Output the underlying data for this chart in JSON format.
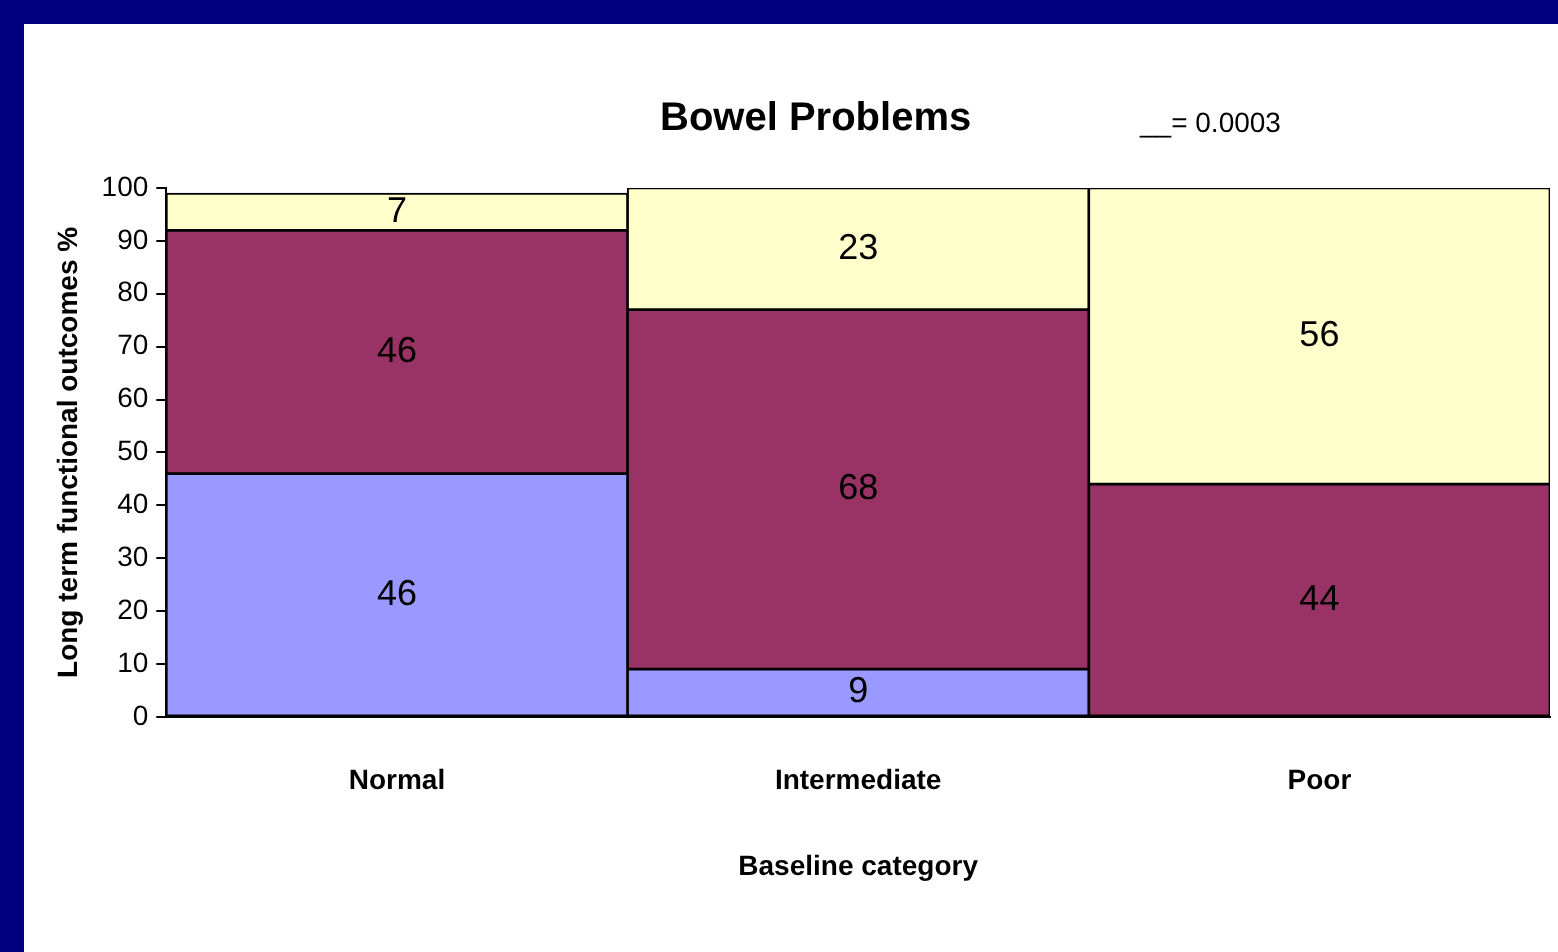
{
  "chart_data": {
    "type": "bar",
    "title": "Bowel Problems",
    "annotations": [
      "__= 0.0003"
    ],
    "xlabel": "Baseline category",
    "ylabel": "Long term functional outcomes %",
    "categories": [
      "Normal",
      "Intermediate",
      "Poor"
    ],
    "stacked": true,
    "series": [
      {
        "color": "#9999ff",
        "values": [
          46,
          9,
          null
        ]
      },
      {
        "color": "#993366",
        "values": [
          46,
          68,
          44
        ]
      },
      {
        "color": "#ffffcc",
        "values": [
          7,
          23,
          56
        ]
      }
    ],
    "ylim": [
      0,
      100
    ],
    "yticks": [
      0,
      10,
      20,
      30,
      40,
      50,
      60,
      70,
      80,
      90,
      100
    ],
    "grid": false,
    "legend": false,
    "data_labels": true
  }
}
